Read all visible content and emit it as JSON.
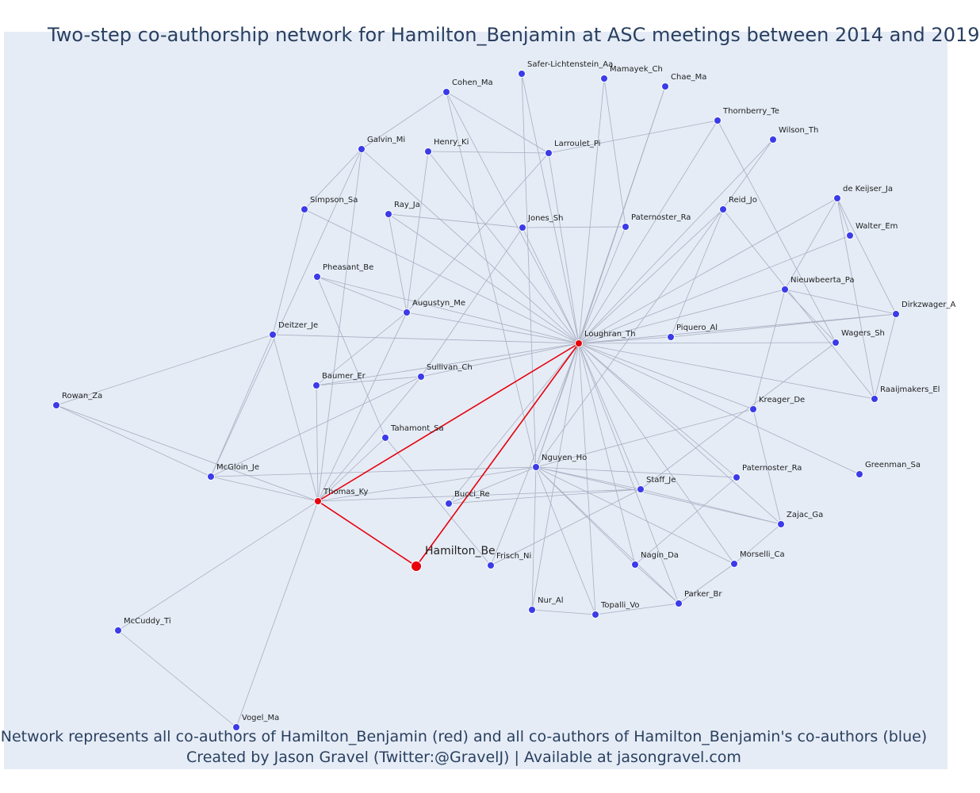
{
  "title": "Two-step co-authorship network for Hamilton_Benjamin at ASC meetings between 2014 and 2019",
  "footer_line1": "Network represents all co-authors of Hamilton_Benjamin (red) and all co-authors of Hamilton_Benjamin's co-authors (blue)",
  "footer_line2": "Created by Jason Gravel (Twitter:@GravelJ) | Available at jasongravel.com",
  "colors": {
    "background": "#e5ecf6",
    "edge": "#a9aec0",
    "focal_edge": "#e8000b",
    "coauthor_node": "#e8000b",
    "second_step_node": "#3b3be8",
    "title_text": "#2a3f5f"
  },
  "nodes": [
    {
      "id": "hamilton",
      "label": "Hamilton_Be",
      "group": "focal"
    },
    {
      "id": "loughran",
      "label": "Loughran_Th",
      "group": "coauthor"
    },
    {
      "id": "thomas",
      "label": "Thomas_Ky",
      "group": "coauthor"
    },
    {
      "id": "safer",
      "label": "Safer-Lichtenstein_Aa",
      "group": "second"
    },
    {
      "id": "mamayek",
      "label": "Mamayek_Ch",
      "group": "second"
    },
    {
      "id": "chae",
      "label": "Chae_Ma",
      "group": "second"
    },
    {
      "id": "cohen",
      "label": "Cohen_Ma",
      "group": "second"
    },
    {
      "id": "thornberry",
      "label": "Thornberry_Te",
      "group": "second"
    },
    {
      "id": "wilson",
      "label": "Wilson_Th",
      "group": "second"
    },
    {
      "id": "galvin",
      "label": "Galvin_Mi",
      "group": "second"
    },
    {
      "id": "henry",
      "label": "Henry_Ki",
      "group": "second"
    },
    {
      "id": "larroulet",
      "label": "Larroulet_Pi",
      "group": "second"
    },
    {
      "id": "simpson",
      "label": "Simpson_Sa",
      "group": "second"
    },
    {
      "id": "ray",
      "label": "Ray_Ja",
      "group": "second"
    },
    {
      "id": "jones",
      "label": "Jones_Sh",
      "group": "second"
    },
    {
      "id": "paternoster1",
      "label": "Paternoster_Ra",
      "group": "second"
    },
    {
      "id": "reid",
      "label": "Reid_Jo",
      "group": "second"
    },
    {
      "id": "dekeijser",
      "label": "de Keijser_Ja",
      "group": "second"
    },
    {
      "id": "walter",
      "label": "Walter_Em",
      "group": "second"
    },
    {
      "id": "pheasant",
      "label": "Pheasant_Be",
      "group": "second"
    },
    {
      "id": "nieuwbeerta",
      "label": "Nieuwbeerta_Pa",
      "group": "second"
    },
    {
      "id": "augustyn",
      "label": "Augustyn_Me",
      "group": "second"
    },
    {
      "id": "dirkzwager",
      "label": "Dirkzwager_A",
      "group": "second"
    },
    {
      "id": "deitzer",
      "label": "Deitzer_Je",
      "group": "second"
    },
    {
      "id": "piquero",
      "label": "Piquero_Al",
      "group": "second"
    },
    {
      "id": "wagers",
      "label": "Wagers_Sh",
      "group": "second"
    },
    {
      "id": "sullivan",
      "label": "Sullivan_Ch",
      "group": "second"
    },
    {
      "id": "baumer",
      "label": "Baumer_Er",
      "group": "second"
    },
    {
      "id": "raaijmakers",
      "label": "Raaijmakers_El",
      "group": "second"
    },
    {
      "id": "rowan",
      "label": "Rowan_Za",
      "group": "second"
    },
    {
      "id": "kreager",
      "label": "Kreager_De",
      "group": "second"
    },
    {
      "id": "tahamont",
      "label": "Tahamont_Sa",
      "group": "second"
    },
    {
      "id": "greenman",
      "label": "Greenman_Sa",
      "group": "second"
    },
    {
      "id": "nguyen",
      "label": "Nguyen_Ho",
      "group": "second"
    },
    {
      "id": "mcgloin",
      "label": "McGloin_Je",
      "group": "second"
    },
    {
      "id": "paternoster2",
      "label": "Paternoster_Ra",
      "group": "second"
    },
    {
      "id": "staff",
      "label": "Staff_Je",
      "group": "second"
    },
    {
      "id": "bucci",
      "label": "Bucci_Re",
      "group": "second"
    },
    {
      "id": "zajac",
      "label": "Zajac_Ga",
      "group": "second"
    },
    {
      "id": "frisch",
      "label": "Frisch_Ni",
      "group": "second"
    },
    {
      "id": "nagin",
      "label": "Nagin_Da",
      "group": "second"
    },
    {
      "id": "morselli",
      "label": "Morselli_Ca",
      "group": "second"
    },
    {
      "id": "parker",
      "label": "Parker_Br",
      "group": "second"
    },
    {
      "id": "nur",
      "label": "Nur_Al",
      "group": "second"
    },
    {
      "id": "topalli",
      "label": "Topalli_Vo",
      "group": "second"
    },
    {
      "id": "mccuddy",
      "label": "McCuddy_Ti",
      "group": "second"
    },
    {
      "id": "vogel",
      "label": "Vogel_Ma",
      "group": "second"
    }
  ],
  "edges": [
    [
      "hamilton",
      "loughran"
    ],
    [
      "hamilton",
      "thomas"
    ],
    [
      "thomas",
      "loughran"
    ],
    [
      "loughran",
      "safer"
    ],
    [
      "loughran",
      "mamayek"
    ],
    [
      "loughran",
      "chae"
    ],
    [
      "loughran",
      "cohen"
    ],
    [
      "loughran",
      "thornberry"
    ],
    [
      "loughran",
      "wilson"
    ],
    [
      "loughran",
      "galvin"
    ],
    [
      "loughran",
      "henry"
    ],
    [
      "loughran",
      "larroulet"
    ],
    [
      "loughran",
      "simpson"
    ],
    [
      "loughran",
      "ray"
    ],
    [
      "loughran",
      "jones"
    ],
    [
      "loughran",
      "paternoster1"
    ],
    [
      "loughran",
      "reid"
    ],
    [
      "loughran",
      "dekeijser"
    ],
    [
      "loughran",
      "walter"
    ],
    [
      "loughran",
      "pheasant"
    ],
    [
      "loughran",
      "nieuwbeerta"
    ],
    [
      "loughran",
      "augustyn"
    ],
    [
      "loughran",
      "dirkzwager"
    ],
    [
      "loughran",
      "deitzer"
    ],
    [
      "loughran",
      "piquero"
    ],
    [
      "loughran",
      "wagers"
    ],
    [
      "loughran",
      "sullivan"
    ],
    [
      "loughran",
      "baumer"
    ],
    [
      "loughran",
      "raaijmakers"
    ],
    [
      "loughran",
      "kreager"
    ],
    [
      "loughran",
      "greenman"
    ],
    [
      "loughran",
      "nguyen"
    ],
    [
      "loughran",
      "paternoster2"
    ],
    [
      "loughran",
      "staff"
    ],
    [
      "loughran",
      "bucci"
    ],
    [
      "loughran",
      "zajac"
    ],
    [
      "loughran",
      "nagin"
    ],
    [
      "loughran",
      "morselli"
    ],
    [
      "loughran",
      "parker"
    ],
    [
      "loughran",
      "nur"
    ],
    [
      "loughran",
      "topalli"
    ],
    [
      "loughran",
      "frisch"
    ],
    [
      "thomas",
      "mcgloin"
    ],
    [
      "thomas",
      "rowan"
    ],
    [
      "thomas",
      "deitzer"
    ],
    [
      "thomas",
      "baumer"
    ],
    [
      "thomas",
      "sullivan"
    ],
    [
      "thomas",
      "tahamont"
    ],
    [
      "thomas",
      "nguyen"
    ],
    [
      "thomas",
      "staff"
    ],
    [
      "thomas",
      "mccuddy"
    ],
    [
      "thomas",
      "vogel"
    ],
    [
      "thomas",
      "galvin"
    ],
    [
      "thomas",
      "augustyn"
    ],
    [
      "mccuddy",
      "vogel"
    ],
    [
      "rowan",
      "deitzer"
    ],
    [
      "rowan",
      "mcgloin"
    ],
    [
      "mcgloin",
      "nguyen"
    ],
    [
      "mcgloin",
      "galvin"
    ],
    [
      "mcgloin",
      "sullivan"
    ],
    [
      "mcgloin",
      "deitzer"
    ],
    [
      "simpson",
      "galvin"
    ],
    [
      "simpson",
      "deitzer"
    ],
    [
      "galvin",
      "cohen"
    ],
    [
      "cohen",
      "larroulet"
    ],
    [
      "cohen",
      "nguyen"
    ],
    [
      "safer",
      "nguyen"
    ],
    [
      "henry",
      "larroulet"
    ],
    [
      "henry",
      "augustyn"
    ],
    [
      "larroulet",
      "thornberry"
    ],
    [
      "larroulet",
      "augustyn"
    ],
    [
      "ray",
      "jones"
    ],
    [
      "ray",
      "augustyn"
    ],
    [
      "jones",
      "paternoster1"
    ],
    [
      "jones",
      "sullivan"
    ],
    [
      "mamayek",
      "paternoster1"
    ],
    [
      "chae",
      "nguyen"
    ],
    [
      "reid",
      "piquero"
    ],
    [
      "reid",
      "raaijmakers"
    ],
    [
      "dekeijser",
      "nieuwbeerta"
    ],
    [
      "dekeijser",
      "walter"
    ],
    [
      "dekeijser",
      "dirkzwager"
    ],
    [
      "dekeijser",
      "raaijmakers"
    ],
    [
      "nieuwbeerta",
      "wagers"
    ],
    [
      "nieuwbeerta",
      "dirkzwager"
    ],
    [
      "nieuwbeerta",
      "kreager"
    ],
    [
      "dirkzwager",
      "raaijmakers"
    ],
    [
      "dirkzwager",
      "piquero"
    ],
    [
      "wagers",
      "staff"
    ],
    [
      "wilson",
      "nguyen"
    ],
    [
      "thornberry",
      "wagers"
    ],
    [
      "pheasant",
      "augustyn"
    ],
    [
      "pheasant",
      "tahamont"
    ],
    [
      "augustyn",
      "baumer"
    ],
    [
      "sullivan",
      "baumer"
    ],
    [
      "tahamont",
      "frisch"
    ],
    [
      "kreager",
      "nguyen"
    ],
    [
      "kreager",
      "zajac"
    ],
    [
      "nguyen",
      "paternoster2"
    ],
    [
      "nguyen",
      "staff"
    ],
    [
      "nguyen",
      "zajac"
    ],
    [
      "nguyen",
      "nagin"
    ],
    [
      "nguyen",
      "morselli"
    ],
    [
      "nguyen",
      "parker"
    ],
    [
      "nguyen",
      "nur"
    ],
    [
      "nguyen",
      "topalli"
    ],
    [
      "nguyen",
      "bucci"
    ],
    [
      "staff",
      "zajac"
    ],
    [
      "staff",
      "bucci"
    ],
    [
      "paternoster2",
      "nagin"
    ],
    [
      "zajac",
      "morselli"
    ],
    [
      "morselli",
      "parker"
    ],
    [
      "nagin",
      "parker"
    ],
    [
      "nur",
      "topalli"
    ],
    [
      "topalli",
      "parker"
    ],
    [
      "frisch",
      "staff"
    ]
  ]
}
